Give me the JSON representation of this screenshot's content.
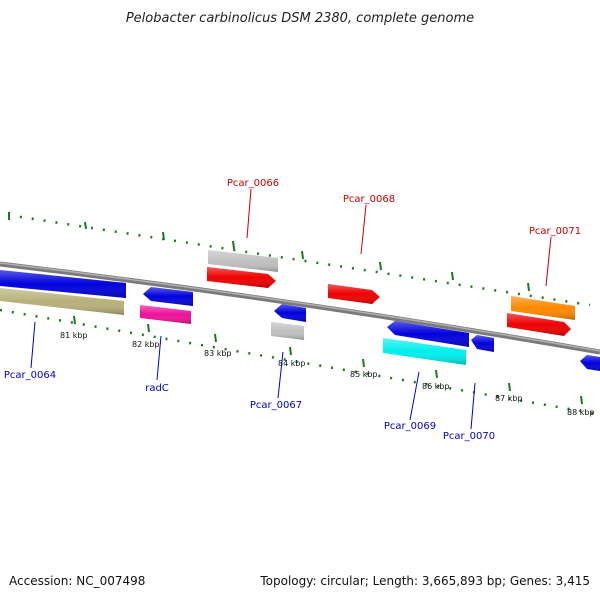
{
  "header": {
    "title": "Pelobacter carbinolicus DSM 2380, complete genome"
  },
  "footer": {
    "accession": "Accession: NC_007498",
    "summary": "Topology: circular; Length: 3,665,893 bp; Genes: 3,415"
  },
  "colors": {
    "backbone": "#808080",
    "tick_green": "#1a7a1a",
    "top_label": "#cc0000",
    "bottom_label": "#0000cc"
  },
  "ticks": [
    {
      "kbp": 81,
      "label": "81 kbp"
    },
    {
      "kbp": 82,
      "label": "82 kbp"
    },
    {
      "kbp": 83,
      "label": "83 kbp"
    },
    {
      "kbp": 84,
      "label": "84 kbp"
    },
    {
      "kbp": 85,
      "label": "85 kbp"
    },
    {
      "kbp": 86,
      "label": "86 kbp"
    },
    {
      "kbp": 87,
      "label": "87 kbp"
    },
    {
      "kbp": 88,
      "label": "88 kbp"
    }
  ],
  "gene_labels": [
    {
      "name": "Pcar_0066",
      "side": "top"
    },
    {
      "name": "Pcar_0068",
      "side": "top"
    },
    {
      "name": "Pcar_0071",
      "side": "top"
    },
    {
      "name": "Pcar_0064",
      "side": "bottom"
    },
    {
      "name": "radC",
      "side": "bottom"
    },
    {
      "name": "Pcar_0067",
      "side": "bottom"
    },
    {
      "name": "Pcar_0069",
      "side": "bottom"
    },
    {
      "name": "Pcar_0070",
      "side": "bottom"
    }
  ],
  "features": [
    {
      "id": "Pcar_0064",
      "color": "#0000dd",
      "strand": "forward"
    },
    {
      "id": "Pcar_0064-partner",
      "color": "#b8b07a",
      "strand": "forward"
    },
    {
      "id": "radC",
      "color": "#ee1199",
      "strand": "reverse"
    },
    {
      "id": "radC-neighbor",
      "color": "#0000dd",
      "strand": "reverse"
    },
    {
      "id": "Pcar_0066",
      "color": "#ee0000",
      "strand": "forward"
    },
    {
      "id": "Pcar_0066-rna",
      "color": "#c0c0c0",
      "strand": "forward"
    },
    {
      "id": "Pcar_0067",
      "color": "#0000dd",
      "strand": "reverse"
    },
    {
      "id": "Pcar_0067-rna",
      "color": "#c0c0c0",
      "strand": "reverse"
    },
    {
      "id": "Pcar_0068",
      "color": "#ee0000",
      "strand": "forward"
    },
    {
      "id": "Pcar_0069",
      "color": "#0000dd",
      "strand": "reverse"
    },
    {
      "id": "Pcar_0069-cds",
      "color": "#00eeee",
      "strand": "reverse"
    },
    {
      "id": "Pcar_0070",
      "color": "#0000dd",
      "strand": "reverse"
    },
    {
      "id": "Pcar_0071",
      "color": "#ff8800",
      "strand": "forward"
    },
    {
      "id": "Pcar_0071-cds",
      "color": "#ee0000",
      "strand": "forward"
    },
    {
      "id": "edge-gene",
      "color": "#0000dd",
      "strand": "reverse"
    }
  ]
}
